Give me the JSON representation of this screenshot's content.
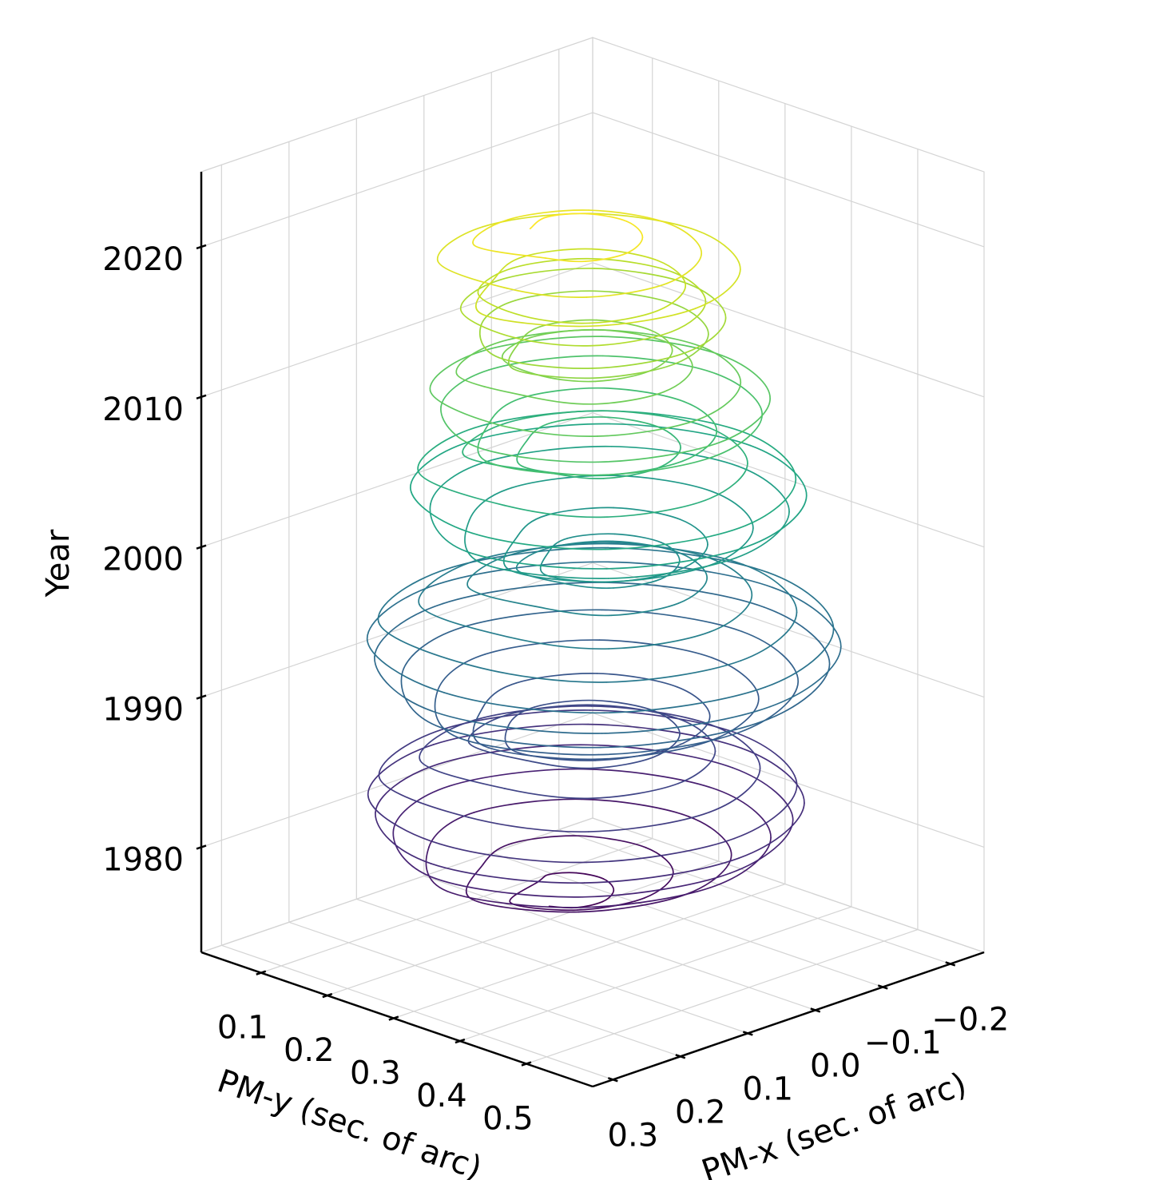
{
  "chart_data": {
    "type": "line3d",
    "xlabel": "PM-x (sec. of arc)",
    "ylabel": "PM-y (sec. of arc)",
    "zlabel": "Year",
    "xlim": [
      -0.25,
      0.33
    ],
    "ylim": [
      0.01,
      0.6
    ],
    "zlim": [
      1973,
      2025
    ],
    "xticks": [
      {
        "value": -0.2,
        "label": "−0.2"
      },
      {
        "value": -0.1,
        "label": "−0.1"
      },
      {
        "value": 0,
        "label": "0.0"
      },
      0.1,
      0.2,
      0.3
    ],
    "yticks": [
      0.1,
      0.2,
      0.3,
      0.4,
      0.5
    ],
    "zticks": [
      1980,
      1990,
      2000,
      2010,
      2020
    ],
    "grid": true,
    "colormap": "viridis",
    "series": [
      {
        "x": [
          0.07,
          0.058,
          0.03,
          0.002,
          -0.01,
          0.002,
          0.03,
          0.058,
          0.13,
          0.101,
          0.03,
          -0.041,
          -0.07,
          -0.041,
          0.03,
          0.101,
          0.19,
          0.143,
          0.03,
          -0.083,
          -0.13,
          -0.083,
          0.03,
          0.143,
          0.23,
          0.171,
          0.03,
          -0.111,
          -0.17,
          -0.111,
          0.03,
          0.171,
          0.25,
          0.186,
          0.03,
          -0.126,
          -0.19,
          -0.126,
          0.03,
          0.186,
          0.26,
          0.193,
          0.03,
          -0.133,
          -0.2,
          -0.133,
          0.03,
          0.193,
          0.25,
          0.186,
          0.03,
          -0.126,
          -0.19,
          -0.126,
          0.03,
          0.186,
          0.21,
          0.157,
          0.03,
          -0.097,
          -0.15,
          -0.097,
          0.03,
          0.157,
          0.16,
          0.122,
          0.03,
          -0.062,
          -0.1,
          -0.062,
          0.03,
          0.122,
          0.12,
          0.094,
          0.03,
          -0.034,
          -0.06,
          -0.034,
          0.03,
          0.094,
          0.15,
          0.115,
          0.03,
          -0.055,
          -0.09,
          -0.055,
          0.03,
          0.115,
          0.2,
          0.15,
          0.03,
          -0.09,
          -0.14,
          -0.09,
          0.03,
          0.15,
          0.24,
          0.178,
          0.03,
          -0.118,
          -0.18,
          -0.118,
          0.03,
          0.178,
          0.27,
          0.2,
          0.03,
          -0.14,
          -0.21,
          -0.14,
          0.03,
          0.2,
          0.28,
          0.207,
          0.03,
          -0.147,
          -0.22,
          -0.147,
          0.03,
          0.207,
          0.27,
          0.2,
          0.03,
          -0.14,
          -0.21,
          -0.14,
          0.03,
          0.2,
          0.23,
          0.171,
          0.03,
          -0.111,
          -0.17,
          -0.111,
          0.03,
          0.171,
          0.18,
          0.136,
          0.03,
          -0.076,
          -0.12,
          -0.076,
          0.03,
          0.136,
          0.13,
          0.101,
          0.03,
          -0.041,
          -0.07,
          -0.041,
          0.03,
          0.101,
          0.1,
          0.079,
          0.03,
          -0.019,
          -0.04,
          -0.019,
          0.03,
          0.079,
          0.135,
          0.106,
          0.035,
          -0.036,
          -0.065,
          -0.036,
          0.035,
          0.106,
          0.19,
          0.146,
          0.04,
          -0.066,
          -0.11,
          -0.066,
          0.04,
          0.146,
          0.235,
          0.179,
          0.045,
          -0.089,
          -0.145,
          -0.089,
          0.045,
          0.179,
          0.26,
          0.198,
          0.05,
          -0.098,
          -0.16,
          -0.098,
          0.05,
          0.198,
          0.255,
          0.196,
          0.055,
          -0.086,
          -0.145,
          -0.086,
          0.055,
          0.196,
          0.21,
          0.166,
          0.06,
          -0.046,
          -0.09,
          -0.046,
          0.06,
          0.166,
          0.145,
          0.122,
          0.065,
          0.008,
          -0.015,
          0.008,
          0.065,
          0.122,
          0.19,
          0.155,
          0.07,
          -0.015,
          -0.05,
          -0.015,
          0.07,
          0.155,
          0.245,
          0.195,
          0.075,
          -0.045,
          -0.095,
          -0.045,
          0.075,
          0.195,
          0.26,
          0.207,
          0.08,
          -0.047,
          -0.1,
          -0.047,
          0.08,
          0.207,
          0.235,
          0.191,
          0.085,
          -0.021,
          -0.065,
          -0.021,
          0.085,
          0.191,
          0.19,
          0.161,
          0.09,
          0.019,
          -0.01,
          0.019,
          0.09,
          0.161,
          0.175,
          0.152,
          0.095,
          0.038,
          0.015,
          0.038,
          0.095,
          0.152,
          0.22,
          0.185,
          0.1,
          0.015,
          -0.02,
          0.015,
          0.1,
          0.185,
          0.245,
          0.204,
          0.105,
          0.006,
          -0.035,
          0.006,
          0.105,
          0.204,
          0.23,
          0.195,
          0.11,
          0.025,
          -0.01,
          0.025,
          0.11,
          0.195,
          0.215,
          0.186,
          0.115,
          0.044,
          0.015,
          0.044,
          0.115,
          0.186,
          0.28,
          0.233,
          0.12,
          0.007,
          -0.04,
          0.007,
          0.12,
          0.233,
          0.245,
          0.21,
          0.125,
          0.04,
          0.005,
          0.04,
          0.125,
          0.21,
          0.19,
          0.172,
          0.13,
          0.088,
          0.07,
          0.088,
          0.13,
          0.172
        ],
        "y": [
          0.27,
          0.298,
          0.31,
          0.298,
          0.27,
          0.242,
          0.23,
          0.242,
          0.273,
          0.344,
          0.373,
          0.344,
          0.273,
          0.202,
          0.173,
          0.202,
          0.276,
          0.389,
          0.436,
          0.389,
          0.276,
          0.163,
          0.116,
          0.163,
          0.279,
          0.42,
          0.479,
          0.42,
          0.279,
          0.138,
          0.079,
          0.138,
          0.282,
          0.438,
          0.502,
          0.438,
          0.282,
          0.126,
          0.062,
          0.126,
          0.285,
          0.448,
          0.515,
          0.448,
          0.285,
          0.122,
          0.055,
          0.122,
          0.288,
          0.444,
          0.508,
          0.444,
          0.288,
          0.132,
          0.068,
          0.132,
          0.291,
          0.418,
          0.471,
          0.418,
          0.291,
          0.164,
          0.111,
          0.164,
          0.294,
          0.386,
          0.424,
          0.386,
          0.294,
          0.202,
          0.164,
          0.202,
          0.297,
          0.361,
          0.387,
          0.361,
          0.297,
          0.233,
          0.207,
          0.233,
          0.3,
          0.385,
          0.42,
          0.385,
          0.3,
          0.215,
          0.18,
          0.215,
          0.303,
          0.423,
          0.473,
          0.423,
          0.303,
          0.183,
          0.133,
          0.183,
          0.306,
          0.454,
          0.516,
          0.454,
          0.306,
          0.158,
          0.096,
          0.158,
          0.309,
          0.479,
          0.549,
          0.479,
          0.309,
          0.139,
          0.069,
          0.139,
          0.312,
          0.489,
          0.562,
          0.489,
          0.312,
          0.135,
          0.062,
          0.135,
          0.315,
          0.485,
          0.555,
          0.485,
          0.315,
          0.145,
          0.075,
          0.145,
          0.318,
          0.459,
          0.518,
          0.459,
          0.318,
          0.177,
          0.118,
          0.177,
          0.321,
          0.427,
          0.471,
          0.427,
          0.321,
          0.215,
          0.171,
          0.215,
          0.324,
          0.395,
          0.424,
          0.395,
          0.324,
          0.253,
          0.224,
          0.253,
          0.327,
          0.376,
          0.397,
          0.376,
          0.327,
          0.278,
          0.257,
          0.278,
          0.33,
          0.401,
          0.43,
          0.401,
          0.33,
          0.259,
          0.23,
          0.259,
          0.333,
          0.439,
          0.483,
          0.439,
          0.333,
          0.227,
          0.183,
          0.227,
          0.336,
          0.47,
          0.526,
          0.47,
          0.336,
          0.202,
          0.146,
          0.202,
          0.339,
          0.487,
          0.549,
          0.487,
          0.339,
          0.191,
          0.129,
          0.191,
          0.342,
          0.483,
          0.542,
          0.483,
          0.342,
          0.201,
          0.142,
          0.201,
          0.345,
          0.451,
          0.495,
          0.451,
          0.345,
          0.239,
          0.195,
          0.239,
          0.348,
          0.405,
          0.428,
          0.405,
          0.348,
          0.291,
          0.268,
          0.291,
          0.351,
          0.436,
          0.471,
          0.436,
          0.351,
          0.266,
          0.231,
          0.266,
          0.354,
          0.474,
          0.524,
          0.474,
          0.354,
          0.234,
          0.184,
          0.234,
          0.357,
          0.484,
          0.537,
          0.484,
          0.357,
          0.23,
          0.177,
          0.23,
          0.36,
          0.466,
          0.51,
          0.466,
          0.36,
          0.254,
          0.21,
          0.254,
          0.363,
          0.434,
          0.463,
          0.434,
          0.363,
          0.292,
          0.263,
          0.292,
          0.366,
          0.423,
          0.446,
          0.423,
          0.366,
          0.309,
          0.286,
          0.309,
          0.369,
          0.454,
          0.489,
          0.454,
          0.369,
          0.284,
          0.249,
          0.284,
          0.372,
          0.471,
          0.512,
          0.471,
          0.372,
          0.273,
          0.232,
          0.273,
          0.375,
          0.46,
          0.495,
          0.46,
          0.375,
          0.29,
          0.255,
          0.29,
          0.378,
          0.449,
          0.478,
          0.449,
          0.378,
          0.307,
          0.278,
          0.307,
          0.381,
          0.494,
          0.541,
          0.494,
          0.381,
          0.268,
          0.221,
          0.268,
          0.384,
          0.469,
          0.504,
          0.469,
          0.384,
          0.299,
          0.264,
          0.299,
          0.387,
          0.429,
          0.447,
          0.429,
          0.387,
          0.345,
          0.327,
          0.345
        ],
        "z": [
          1976,
          1976.15,
          1976.3,
          1976.45,
          1976.6,
          1976.75,
          1976.9,
          1977.05,
          1977.2,
          1977.35,
          1977.5,
          1977.65,
          1977.8,
          1977.95,
          1978.1,
          1978.25,
          1978.4,
          1978.55,
          1978.7,
          1978.85,
          1979,
          1979.15,
          1979.3,
          1979.45,
          1979.6,
          1979.75,
          1979.9,
          1980.05,
          1980.2,
          1980.35,
          1980.5,
          1980.65,
          1980.8,
          1980.95,
          1981.1,
          1981.25,
          1981.4,
          1981.55,
          1981.7,
          1981.85,
          1982,
          1982.15,
          1982.3,
          1982.45,
          1982.6,
          1982.75,
          1982.9,
          1983.05,
          1983.2,
          1983.35,
          1983.5,
          1983.65,
          1983.8,
          1983.95,
          1984.1,
          1984.25,
          1984.4,
          1984.55,
          1984.7,
          1984.85,
          1985,
          1985.15,
          1985.3,
          1985.45,
          1985.6,
          1985.75,
          1985.9,
          1986.05,
          1986.2,
          1986.35,
          1986.5,
          1986.65,
          1986.8,
          1986.95,
          1987.1,
          1987.25,
          1987.4,
          1987.55,
          1987.7,
          1987.85,
          1988,
          1988.15,
          1988.3,
          1988.45,
          1988.6,
          1988.75,
          1988.9,
          1989.05,
          1989.2,
          1989.35,
          1989.5,
          1989.65,
          1989.8,
          1989.95,
          1990.1,
          1990.25,
          1990.4,
          1990.55,
          1990.7,
          1990.85,
          1991,
          1991.15,
          1991.3,
          1991.45,
          1991.6,
          1991.75,
          1991.9,
          1992.05,
          1992.2,
          1992.35,
          1992.5,
          1992.65,
          1992.8,
          1992.95,
          1993.1,
          1993.25,
          1993.4,
          1993.55,
          1993.7,
          1993.85,
          1994,
          1994.15,
          1994.3,
          1994.45,
          1994.6,
          1994.75,
          1994.9,
          1995.05,
          1995.2,
          1995.35,
          1995.5,
          1995.65,
          1995.8,
          1995.95,
          1996.1,
          1996.25,
          1996.4,
          1996.55,
          1996.7,
          1996.85,
          1997,
          1997.15,
          1997.3,
          1997.45,
          1997.6,
          1997.75,
          1997.9,
          1998.05,
          1998.2,
          1998.35,
          1998.5,
          1998.65,
          1998.8,
          1998.95,
          1999.1,
          1999.25,
          1999.4,
          1999.55,
          1999.7,
          1999.85,
          2000,
          2000.15,
          2000.3,
          2000.45,
          2000.6,
          2000.75,
          2000.9,
          2001.05,
          2001.2,
          2001.35,
          2001.5,
          2001.65,
          2001.8,
          2001.95,
          2002.1,
          2002.25,
          2002.4,
          2002.55,
          2002.7,
          2002.85,
          2003,
          2003.15,
          2003.3,
          2003.45,
          2003.6,
          2003.75,
          2003.9,
          2004.05,
          2004.2,
          2004.35,
          2004.5,
          2004.65,
          2004.8,
          2004.95,
          2005.1,
          2005.25,
          2005.4,
          2005.55,
          2005.7,
          2005.85,
          2006,
          2006.15,
          2006.3,
          2006.45,
          2006.6,
          2006.75,
          2006.9,
          2007.05,
          2007.2,
          2007.35,
          2007.5,
          2007.65,
          2007.8,
          2007.95,
          2008.1,
          2008.25,
          2008.4,
          2008.55,
          2008.7,
          2008.85,
          2009,
          2009.15,
          2009.3,
          2009.45,
          2009.6,
          2009.75,
          2009.9,
          2010.05,
          2010.2,
          2010.35,
          2010.5,
          2010.65,
          2010.8,
          2010.95,
          2011.1,
          2011.25,
          2011.4,
          2011.55,
          2011.7,
          2011.85,
          2012,
          2012.15,
          2012.3,
          2012.45,
          2012.6,
          2012.75,
          2012.9,
          2013.05,
          2013.2,
          2013.35,
          2013.5,
          2013.65,
          2013.8,
          2013.95,
          2014.1,
          2014.25,
          2014.4,
          2014.55,
          2014.7,
          2014.85,
          2015,
          2015.15,
          2015.3,
          2015.45,
          2015.6,
          2015.75,
          2015.9,
          2016.05,
          2016.2,
          2016.35,
          2016.5,
          2016.65,
          2016.8,
          2016.95,
          2017.1,
          2017.25,
          2017.4,
          2017.55,
          2017.7,
          2017.85,
          2018,
          2018.15,
          2018.3,
          2018.45,
          2018.6,
          2018.75,
          2018.9,
          2019.05,
          2019.2,
          2019.35,
          2019.5,
          2019.65,
          2019.8,
          2019.95,
          2020.1,
          2020.25,
          2020.4,
          2020.55,
          2020.7,
          2020.85,
          2021,
          2021.15,
          2021.3,
          2021.45,
          2021.6,
          2021.75,
          2021.9,
          2022.05,
          2022.2,
          2022.35,
          2022.5,
          2022.65,
          2022.8,
          2022.95,
          2023.1,
          2023.25,
          2023.4,
          2023.55,
          2023.7,
          2023.85
        ]
      }
    ]
  }
}
